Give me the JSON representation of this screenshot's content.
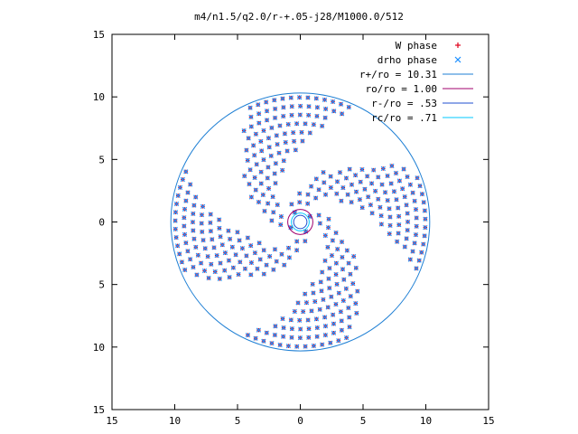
{
  "chart_data": {
    "type": "scatter",
    "title": "m4/n1.5/q2.0/r-+.05-j28/M1000.0/512",
    "xlabel": "",
    "ylabel": "",
    "xlim": [
      -15,
      15
    ],
    "ylim": [
      -15,
      15
    ],
    "x_ticks": [
      -15,
      -10,
      -5,
      0,
      5,
      10,
      15
    ],
    "y_ticks": [
      -15,
      -10,
      -5,
      0,
      5,
      10,
      15
    ],
    "x_tick_labels": [
      "15",
      "10",
      "5",
      "0",
      "5",
      "10",
      "15"
    ],
    "y_tick_labels": [
      "15",
      "10",
      "5",
      "0",
      "5",
      "10",
      "15"
    ],
    "grid": false,
    "legend_position": "top-right",
    "series": [
      {
        "name": "W phase",
        "kind": "points",
        "marker": "plus",
        "color": "#e0001a"
      },
      {
        "name": "drho phase",
        "kind": "points",
        "marker": "cross",
        "color": "#1e90ff"
      },
      {
        "name": "r+/ro = 10.31",
        "kind": "circle",
        "radius": 10.31,
        "color": "#1e7fd4"
      },
      {
        "name": "ro/ro = 1.00",
        "kind": "circle",
        "radius": 1.0,
        "color": "#a0006e"
      },
      {
        "name": "r-/ro = .53",
        "kind": "circle",
        "radius": 0.53,
        "color": "#1f4fd0"
      },
      {
        "name": "rc/ro = .71",
        "kind": "circle",
        "radius": 0.71,
        "color": "#00c8ff"
      }
    ],
    "points_description": {
      "disk_outer_radius": 10.31,
      "disk_inner_radius": 0.53,
      "spiral_arms": 4,
      "rings": 14,
      "points_per_ring": 60
    }
  }
}
